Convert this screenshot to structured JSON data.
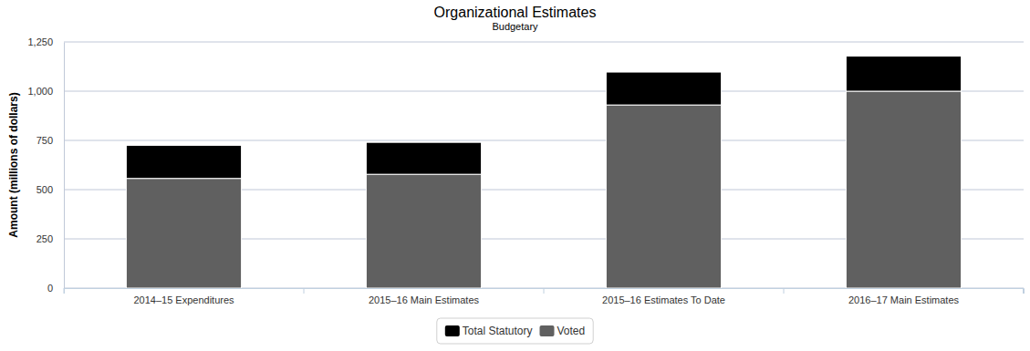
{
  "chart_data": {
    "type": "bar",
    "title": "Organizational Estimates",
    "subtitle": "Budgetary",
    "y_label": "Amount (millions of dollars)",
    "categories": [
      "2014–15 Expenditures",
      "2015–16 Main Estimates",
      "2015–16 Estimates To Date",
      "2016–17 Main Estimates"
    ],
    "series": [
      {
        "name": "Total Statutory",
        "color": "#000000",
        "values": [
          168,
          162,
          167,
          178
        ]
      },
      {
        "name": "Voted",
        "color": "#606060",
        "values": [
          557,
          578,
          930,
          1000
        ]
      }
    ],
    "stacked": true,
    "ylim": [
      0,
      1250
    ],
    "yticks": [
      0,
      250,
      500,
      750,
      {
        "value": 1000,
        "label": "1,000"
      },
      {
        "value": 1250,
        "label": "1,250"
      }
    ],
    "grid": true,
    "legend": "bottom"
  }
}
